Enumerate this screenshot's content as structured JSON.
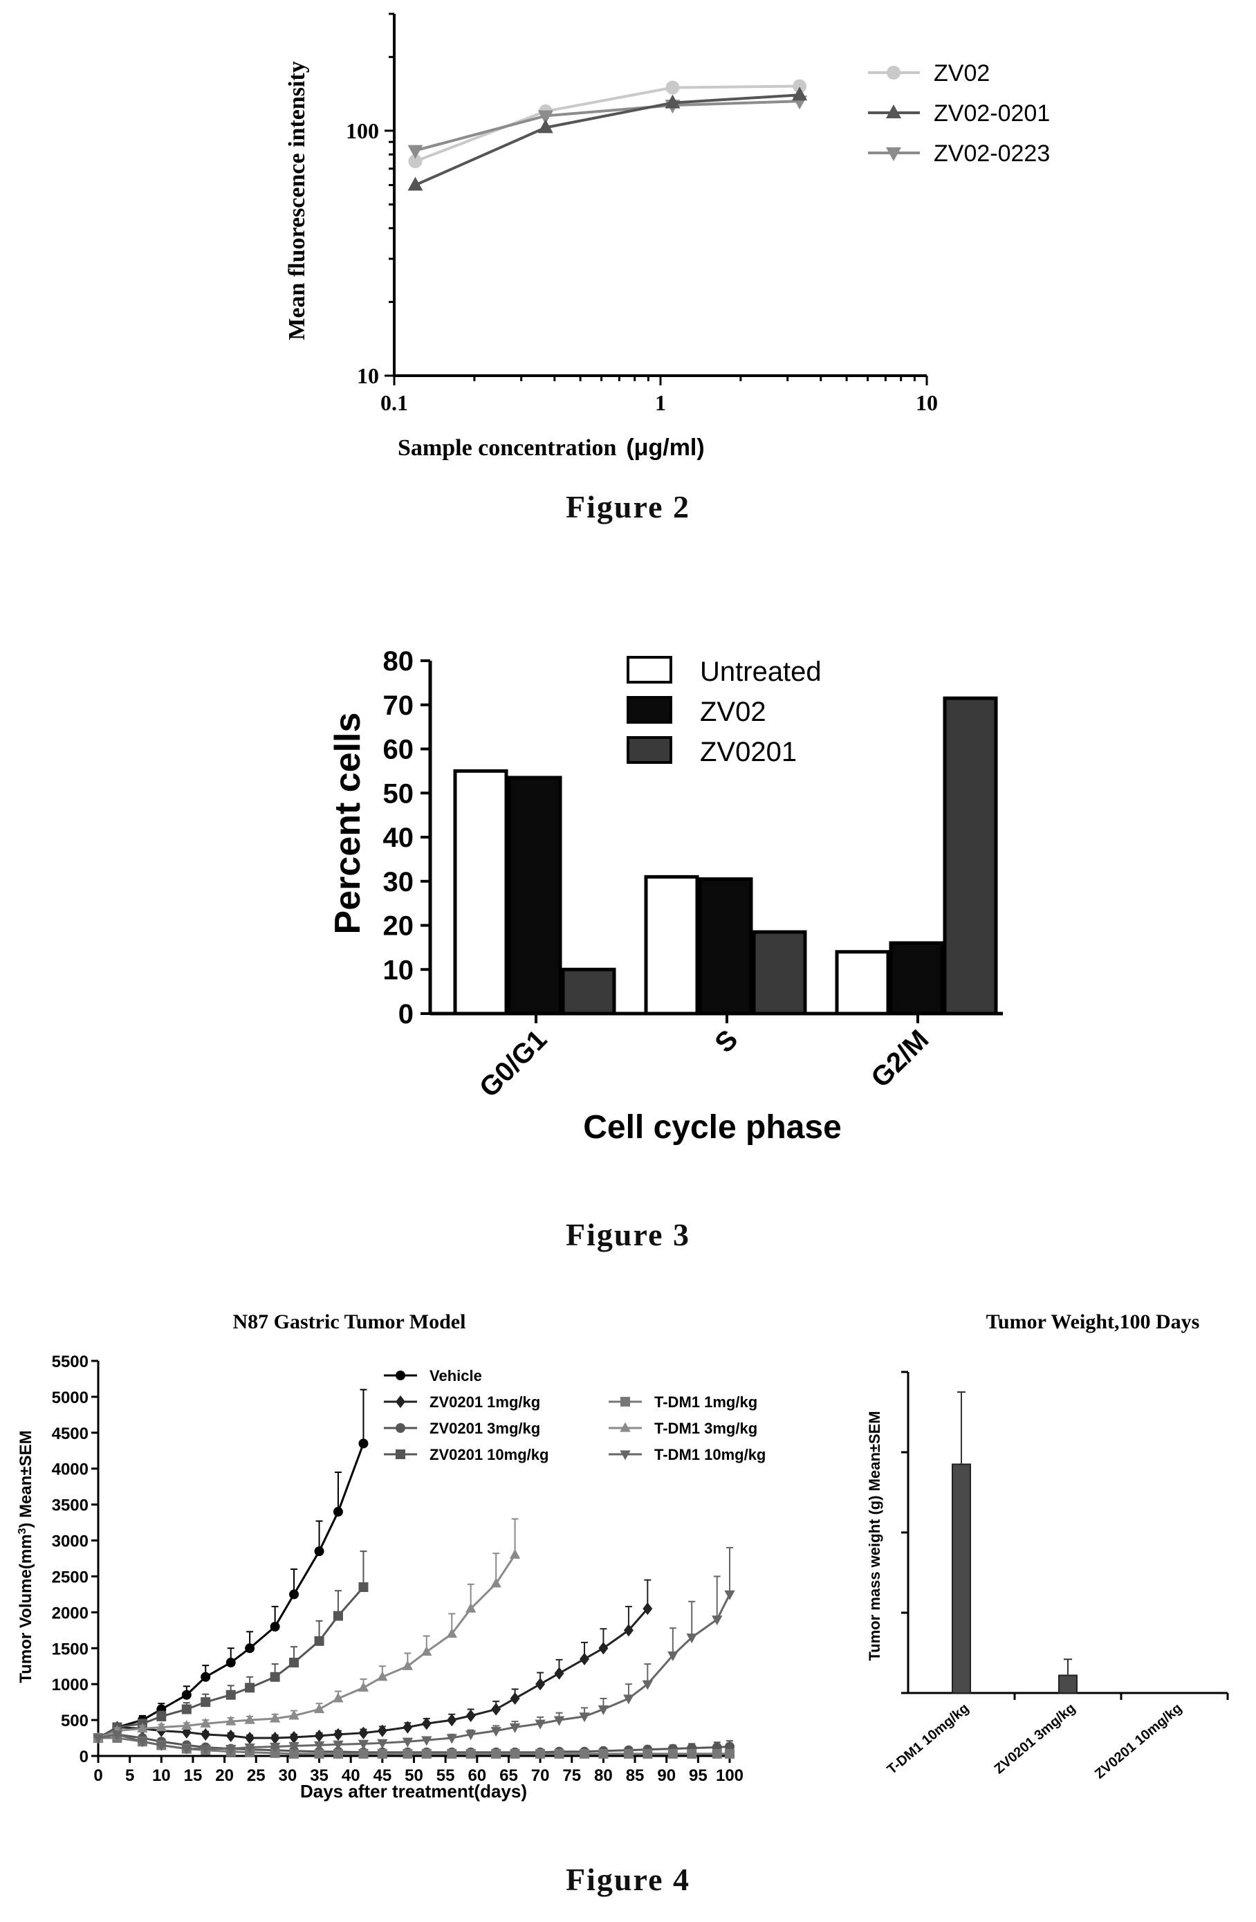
{
  "captions": {
    "fig2": "Figure   2",
    "fig3": "Figure   3",
    "fig4": "Figure   4"
  },
  "chart_data": [
    {
      "id": "fig2",
      "type": "line",
      "xscale": "log",
      "yscale": "log",
      "xlim": [
        0.1,
        10
      ],
      "ylim": [
        10,
        300
      ],
      "xticks": [
        "0.1",
        "1",
        "10"
      ],
      "yticks": [
        "10",
        "100"
      ],
      "xlabel_main": "Sample concentration",
      "xlabel_unit": "(μg/ml)",
      "ylabel": "Mean fluorescence intensity",
      "legend_position": "top-right",
      "colors": [
        "#c9c9c9",
        "#555555",
        "#8c8c8c"
      ],
      "x": [
        0.12,
        0.37,
        1.11,
        3.33
      ],
      "series": [
        {
          "name": "ZV02",
          "marker": "circle",
          "values": [
            75,
            120,
            150,
            152
          ]
        },
        {
          "name": "ZV02-0201",
          "marker": "triangle-up",
          "values": [
            60,
            103,
            130,
            140
          ]
        },
        {
          "name": "ZV02-0223",
          "marker": "triangle-down",
          "values": [
            83,
            115,
            127,
            132
          ]
        }
      ]
    },
    {
      "id": "fig3",
      "type": "bar",
      "categories": [
        "G0/G1",
        "S",
        "G2/M"
      ],
      "ylim": [
        0,
        80
      ],
      "yticks": [
        "0",
        "10",
        "20",
        "30",
        "40",
        "50",
        "60",
        "70",
        "80"
      ],
      "xlabel": "Cell cycle phase",
      "ylabel": "Percent cells",
      "legend_position": "top-center",
      "colors": [
        "#ffffff",
        "#0a0a0a",
        "#3a3a3a"
      ],
      "series": [
        {
          "name": "Untreated",
          "values": [
            55,
            31,
            14
          ]
        },
        {
          "name": "ZV02",
          "values": [
            53.5,
            30.5,
            16
          ]
        },
        {
          "name": "ZV0201",
          "values": [
            10,
            18.5,
            71.5
          ]
        }
      ]
    },
    {
      "id": "fig4a",
      "type": "line",
      "title": "N87  Gastric Tumor Model",
      "xlim": [
        0,
        100
      ],
      "ylim": [
        0,
        5500
      ],
      "xticks": [
        "0",
        "5",
        "10",
        "15",
        "20",
        "25",
        "30",
        "35",
        "40",
        "45",
        "50",
        "55",
        "60",
        "65",
        "70",
        "75",
        "80",
        "85",
        "90",
        "95",
        "100"
      ],
      "yticks": [
        "0",
        "500",
        "1000",
        "1500",
        "2000",
        "2500",
        "3000",
        "3500",
        "4000",
        "4500",
        "5000",
        "5500"
      ],
      "xlabel": "Days after treatment(days)",
      "ylabel_main": "Tumor Volume(mm",
      "ylabel_sup": "3",
      "ylabel_tail": ")  Mean±SEM",
      "legend_position": "top-center",
      "series": [
        {
          "name": "Vehicle",
          "marker": "circle",
          "color": "#000000",
          "x": [
            0,
            3,
            7,
            10,
            14,
            17,
            21,
            24,
            28,
            31,
            35,
            38,
            42
          ],
          "values": [
            250,
            400,
            500,
            650,
            850,
            1100,
            1300,
            1500,
            1800,
            2250,
            2850,
            3400,
            4350
          ],
          "err": [
            0,
            40,
            60,
            80,
            120,
            160,
            200,
            230,
            280,
            350,
            420,
            550,
            750
          ]
        },
        {
          "name": "ZV0201 1mg/kg",
          "marker": "diamond",
          "color": "#222222",
          "x": [
            0,
            3,
            7,
            10,
            14,
            17,
            21,
            24,
            28,
            31,
            35,
            38,
            42,
            45,
            49,
            52,
            56,
            59,
            63,
            66,
            70,
            73,
            77,
            80,
            84,
            87
          ],
          "values": [
            250,
            400,
            380,
            350,
            330,
            300,
            280,
            250,
            250,
            260,
            280,
            300,
            320,
            350,
            400,
            450,
            500,
            560,
            650,
            800,
            1000,
            1150,
            1350,
            1500,
            1750,
            2050
          ],
          "err": [
            0,
            40,
            40,
            40,
            40,
            40,
            40,
            40,
            40,
            40,
            40,
            50,
            50,
            60,
            60,
            70,
            80,
            90,
            110,
            130,
            160,
            190,
            230,
            270,
            330,
            400
          ]
        },
        {
          "name": "ZV0201 3mg/kg",
          "marker": "circle",
          "color": "#555555",
          "x": [
            0,
            3,
            7,
            10,
            14,
            17,
            21,
            24,
            28,
            31,
            35,
            38,
            42,
            45,
            49,
            52,
            56,
            59,
            63,
            66,
            70,
            73,
            77,
            80,
            84,
            87,
            91,
            94,
            98,
            100
          ],
          "values": [
            250,
            300,
            250,
            200,
            150,
            120,
            100,
            90,
            80,
            70,
            60,
            60,
            50,
            50,
            50,
            50,
            50,
            50,
            50,
            50,
            50,
            60,
            60,
            70,
            80,
            90,
            100,
            110,
            120,
            130
          ],
          "err": [
            0,
            40,
            40,
            30,
            30,
            25,
            25,
            20,
            20,
            20,
            20,
            20,
            20,
            20,
            20,
            20,
            20,
            20,
            20,
            20,
            20,
            25,
            25,
            30,
            35,
            40,
            50,
            60,
            70,
            80
          ]
        },
        {
          "name": "ZV0201 10mg/kg",
          "marker": "square",
          "color": "#555555",
          "x": [
            0,
            3,
            7,
            10,
            14,
            17,
            21,
            24,
            28,
            31,
            35,
            38,
            42
          ],
          "values": [
            250,
            400,
            450,
            550,
            650,
            750,
            850,
            950,
            1100,
            1300,
            1600,
            1950,
            2350
          ],
          "err": [
            0,
            40,
            50,
            70,
            90,
            110,
            130,
            150,
            180,
            220,
            280,
            350,
            500
          ]
        },
        {
          "name": "T-DM1 1mg/kg",
          "marker": "square",
          "color": "#777777",
          "x": [
            0,
            3,
            7,
            10,
            14,
            17,
            21,
            24,
            28,
            31,
            35,
            38,
            42,
            45,
            49,
            52,
            56,
            59,
            63,
            66,
            70,
            73,
            77,
            80,
            84,
            87,
            91,
            94,
            98,
            100
          ],
          "values": [
            250,
            250,
            200,
            150,
            100,
            80,
            60,
            50,
            40,
            30,
            30,
            30,
            30,
            30,
            30,
            30,
            30,
            30,
            30,
            30,
            30,
            30,
            30,
            30,
            30,
            30,
            30,
            30,
            30,
            30
          ],
          "err": [
            0,
            30,
            30,
            25,
            20,
            15,
            15,
            10,
            10,
            10,
            10,
            10,
            10,
            10,
            10,
            10,
            10,
            10,
            10,
            10,
            10,
            10,
            10,
            10,
            10,
            10,
            10,
            10,
            10,
            10
          ]
        },
        {
          "name": "T-DM1 3mg/kg",
          "marker": "triangle-up",
          "color": "#8a8a8a",
          "x": [
            0,
            3,
            7,
            10,
            14,
            17,
            21,
            24,
            28,
            31,
            35,
            38,
            42,
            45,
            49,
            52,
            56,
            59,
            63,
            66
          ],
          "values": [
            250,
            350,
            380,
            400,
            420,
            450,
            480,
            500,
            520,
            560,
            650,
            800,
            950,
            1100,
            1250,
            1450,
            1700,
            2050,
            2400,
            2800
          ],
          "err": [
            0,
            40,
            40,
            40,
            40,
            50,
            50,
            50,
            60,
            70,
            80,
            100,
            120,
            150,
            180,
            220,
            280,
            340,
            420,
            500
          ]
        },
        {
          "name": "T-DM1 10mg/kg",
          "marker": "triangle-down",
          "color": "#666666",
          "x": [
            0,
            3,
            7,
            10,
            14,
            17,
            21,
            24,
            28,
            31,
            35,
            38,
            42,
            45,
            49,
            52,
            56,
            59,
            63,
            66,
            70,
            73,
            77,
            80,
            84,
            87,
            91,
            94,
            98,
            100
          ],
          "values": [
            250,
            300,
            200,
            150,
            100,
            100,
            100,
            120,
            130,
            140,
            150,
            160,
            170,
            180,
            200,
            220,
            250,
            300,
            350,
            400,
            450,
            500,
            550,
            650,
            800,
            1000,
            1400,
            1650,
            1900,
            2250
          ],
          "err": [
            0,
            30,
            30,
            30,
            30,
            30,
            30,
            30,
            30,
            30,
            30,
            30,
            30,
            30,
            40,
            40,
            50,
            60,
            70,
            80,
            90,
            100,
            120,
            150,
            200,
            280,
            380,
            500,
            600,
            650
          ]
        }
      ]
    },
    {
      "id": "fig4b",
      "type": "bar",
      "title": "Tumor Weight,100 Days",
      "categories": [
        "T-DM1 10mg/kg",
        "ZV0201 3mg/kg",
        "ZV0201 10mg/kg"
      ],
      "ylim": [
        0,
        4
      ],
      "ylabel": "Tumor mass weight (g)  Mean±SEM",
      "colors": [
        "#4a4a4a"
      ],
      "series": [
        {
          "values": [
            2.85,
            0.22,
            0
          ]
        }
      ],
      "err": [
        0.9,
        0.2,
        0
      ]
    }
  ]
}
